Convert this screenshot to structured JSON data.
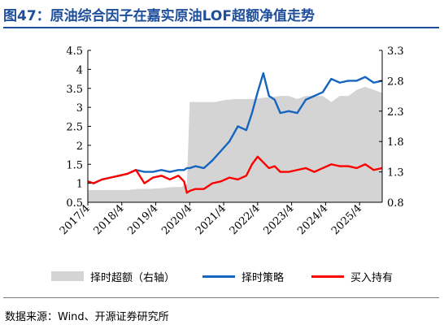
{
  "header": {
    "title": "图47：原油综合因子在嘉实原油LOF超额净值走势"
  },
  "source": "数据来源：Wind、开源证券研究所",
  "colors": {
    "title": "#1f4e9a",
    "timing": "#1565c0",
    "hold": "#ff0000",
    "excess": "#d4d4d4"
  },
  "chart_data": {
    "type": "line",
    "x_ticks": [
      "2017/4",
      "2018/4",
      "2019/4",
      "2020/4",
      "2021/4",
      "2022/4",
      "2023/4",
      "2024/4",
      "2025/4"
    ],
    "x_range": [
      "2017-04",
      "2025-12"
    ],
    "left_axis": {
      "ticks": [
        "0.5",
        "1",
        "1.5",
        "2",
        "2.5",
        "3",
        "3.5",
        "4",
        "4.5"
      ],
      "ylim": [
        0.5,
        4.5
      ]
    },
    "right_axis": {
      "ticks": [
        "0.8",
        "1.3",
        "1.8",
        "2.3",
        "2.8",
        "3.3"
      ],
      "ylim": [
        0.8,
        3.3
      ]
    },
    "grid": false,
    "legend_position": "bottom",
    "series": [
      {
        "name": "择时超额（右轴）",
        "type": "area",
        "axis": "right",
        "x": [
          "2017-04",
          "2017-08",
          "2018-01",
          "2018-06",
          "2018-10",
          "2019-02",
          "2019-06",
          "2019-10",
          "2020-01",
          "2020-03",
          "2020-04",
          "2020-06",
          "2020-10",
          "2021-01",
          "2021-04",
          "2021-08",
          "2021-12",
          "2022-03",
          "2022-06",
          "2022-09",
          "2022-12",
          "2023-03",
          "2023-06",
          "2023-09",
          "2023-12",
          "2024-03",
          "2024-06",
          "2024-09",
          "2024-12",
          "2025-03",
          "2025-06",
          "2025-09",
          "2025-12"
        ],
        "values": [
          1.0,
          1.0,
          1.0,
          1.0,
          1.02,
          1.02,
          1.03,
          1.05,
          1.05,
          1.1,
          2.45,
          2.45,
          2.45,
          2.45,
          2.48,
          2.5,
          2.5,
          2.5,
          2.52,
          2.53,
          2.55,
          2.55,
          2.5,
          2.55,
          2.55,
          2.55,
          2.45,
          2.55,
          2.55,
          2.65,
          2.7,
          2.65,
          2.6
        ]
      },
      {
        "name": "择时策略",
        "type": "line",
        "axis": "left",
        "x": [
          "2017-04",
          "2017-06",
          "2017-09",
          "2017-12",
          "2018-03",
          "2018-06",
          "2018-09",
          "2018-12",
          "2019-03",
          "2019-06",
          "2019-09",
          "2019-12",
          "2020-02",
          "2020-03",
          "2020-04",
          "2020-06",
          "2020-09",
          "2020-12",
          "2021-03",
          "2021-06",
          "2021-09",
          "2021-12",
          "2022-02",
          "2022-04",
          "2022-06",
          "2022-08",
          "2022-10",
          "2022-12",
          "2023-03",
          "2023-06",
          "2023-09",
          "2023-12",
          "2024-03",
          "2024-06",
          "2024-09",
          "2024-12",
          "2025-03",
          "2025-06",
          "2025-09",
          "2025-12"
        ],
        "values": [
          1.05,
          1.0,
          1.1,
          1.15,
          1.2,
          1.25,
          1.35,
          1.3,
          1.3,
          1.35,
          1.3,
          1.35,
          1.35,
          1.4,
          1.4,
          1.45,
          1.4,
          1.6,
          1.85,
          2.1,
          2.5,
          2.4,
          2.85,
          3.4,
          3.9,
          3.3,
          3.2,
          2.85,
          2.9,
          2.85,
          3.2,
          3.3,
          3.4,
          3.75,
          3.65,
          3.7,
          3.7,
          3.8,
          3.65,
          3.7
        ]
      },
      {
        "name": "买入持有",
        "type": "line",
        "axis": "left",
        "x": [
          "2017-04",
          "2017-06",
          "2017-09",
          "2017-12",
          "2018-03",
          "2018-06",
          "2018-09",
          "2018-12",
          "2019-03",
          "2019-06",
          "2019-09",
          "2019-12",
          "2020-02",
          "2020-03",
          "2020-04",
          "2020-06",
          "2020-09",
          "2020-12",
          "2021-03",
          "2021-06",
          "2021-09",
          "2021-12",
          "2022-02",
          "2022-04",
          "2022-06",
          "2022-08",
          "2022-10",
          "2022-12",
          "2023-03",
          "2023-06",
          "2023-09",
          "2023-12",
          "2024-03",
          "2024-06",
          "2024-09",
          "2024-12",
          "2025-03",
          "2025-06",
          "2025-09",
          "2025-12"
        ],
        "values": [
          1.05,
          1.0,
          1.1,
          1.15,
          1.2,
          1.25,
          1.35,
          1.0,
          1.15,
          1.2,
          1.1,
          1.2,
          1.05,
          0.75,
          0.8,
          0.85,
          0.85,
          1.0,
          1.05,
          1.15,
          1.1,
          1.2,
          1.5,
          1.7,
          1.55,
          1.4,
          1.45,
          1.3,
          1.3,
          1.35,
          1.4,
          1.3,
          1.4,
          1.5,
          1.45,
          1.45,
          1.4,
          1.5,
          1.35,
          1.4
        ]
      }
    ]
  }
}
